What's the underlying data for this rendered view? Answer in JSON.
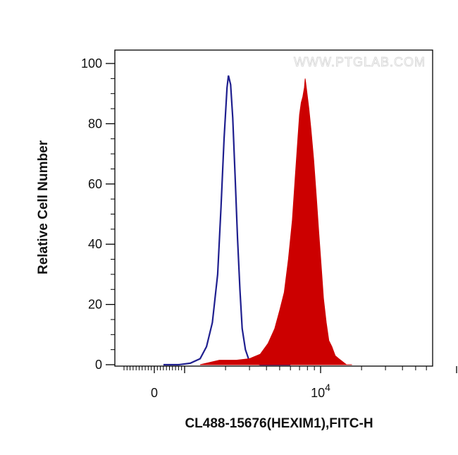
{
  "watermark": "WWW.PTGLAB.COM",
  "chart_data": {
    "type": "area",
    "xlabel": "CL488-15676(HEXIM1),FITC-H",
    "ylabel": "Relative Cell Number",
    "x_scale": "biexponential",
    "ylim": [
      0,
      100
    ],
    "y_ticks": [
      0,
      20,
      40,
      60,
      80,
      100
    ],
    "x_tick_labels": [
      {
        "value": 0,
        "label": "0",
        "exponent": ""
      },
      {
        "value": 10000,
        "label": "10",
        "exponent": "4"
      }
    ],
    "grid": false,
    "legend": "none",
    "series": [
      {
        "style": "outline",
        "color": "#1f1f8f",
        "points": [
          [
            300,
            0
          ],
          [
            800,
            0
          ],
          [
            1100,
            0.5
          ],
          [
            1300,
            2
          ],
          [
            1450,
            6
          ],
          [
            1600,
            14
          ],
          [
            1750,
            30
          ],
          [
            1850,
            52
          ],
          [
            1950,
            75
          ],
          [
            2050,
            92
          ],
          [
            2100,
            96
          ],
          [
            2180,
            93
          ],
          [
            2260,
            82
          ],
          [
            2350,
            63
          ],
          [
            2450,
            42
          ],
          [
            2550,
            25
          ],
          [
            2650,
            12
          ],
          [
            2800,
            5
          ],
          [
            2950,
            2
          ],
          [
            3100,
            1
          ],
          [
            3300,
            0.5
          ],
          [
            3600,
            0
          ],
          [
            6000,
            0
          ]
        ]
      },
      {
        "style": "filled",
        "color": "#cc0000",
        "points": [
          [
            1300,
            0
          ],
          [
            1800,
            1.5
          ],
          [
            2400,
            1.5
          ],
          [
            3000,
            2
          ],
          [
            3600,
            3.5
          ],
          [
            4100,
            7
          ],
          [
            4600,
            12
          ],
          [
            5000,
            18
          ],
          [
            5400,
            24
          ],
          [
            5800,
            35
          ],
          [
            6200,
            48
          ],
          [
            6500,
            62
          ],
          [
            6800,
            75
          ],
          [
            7000,
            83
          ],
          [
            7200,
            87
          ],
          [
            7400,
            89
          ],
          [
            7600,
            92
          ],
          [
            7700,
            95
          ],
          [
            7800,
            93
          ],
          [
            8000,
            89
          ],
          [
            8200,
            85
          ],
          [
            8500,
            78
          ],
          [
            8900,
            68
          ],
          [
            9300,
            56
          ],
          [
            9700,
            44
          ],
          [
            10100,
            33
          ],
          [
            10500,
            22
          ],
          [
            11000,
            14
          ],
          [
            11500,
            8
          ],
          [
            12100,
            6
          ],
          [
            12800,
            3
          ],
          [
            13600,
            2
          ],
          [
            14500,
            1
          ],
          [
            15500,
            0
          ],
          [
            17000,
            0
          ]
        ]
      }
    ]
  }
}
